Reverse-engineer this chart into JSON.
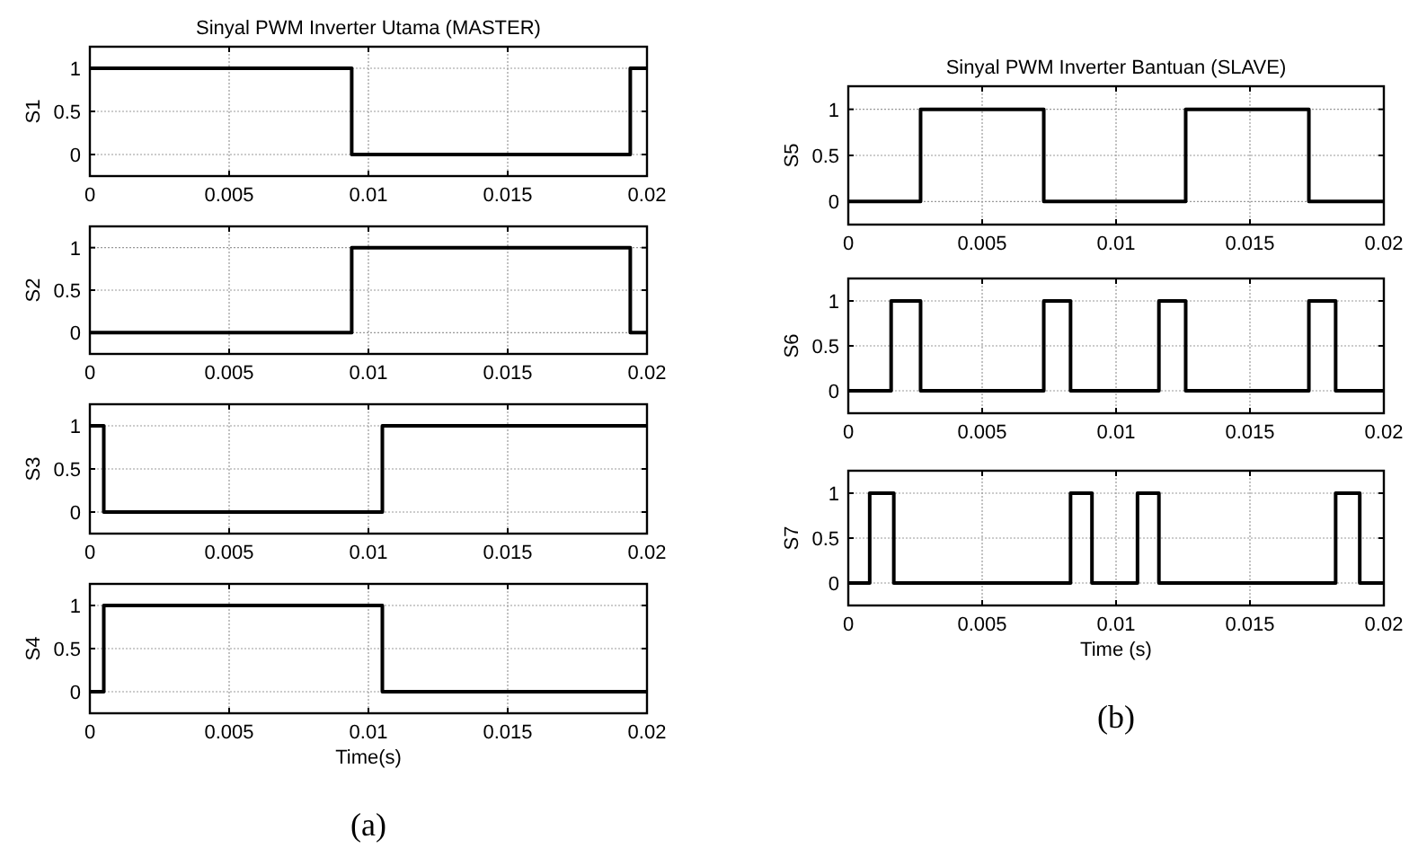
{
  "chart_data": [
    {
      "type": "step",
      "title": "Sinyal PWM Inverter Utama (MASTER)",
      "ylabel": "S1",
      "x": [
        0,
        0.0094,
        0.0194,
        0.02
      ],
      "values": [
        1,
        0,
        1,
        1
      ],
      "color": "#000000",
      "xlim": [
        0,
        0.02
      ],
      "xticks": [
        0,
        0.005,
        0.01,
        0.015,
        0.02
      ],
      "ylim": [
        -0.25,
        1.25
      ],
      "yticks": [
        0,
        0.5,
        1
      ],
      "grid": true
    },
    {
      "type": "step",
      "ylabel": "S2",
      "x": [
        0,
        0.0094,
        0.0194,
        0.02
      ],
      "values": [
        0,
        1,
        0,
        0
      ],
      "color": "#000000",
      "xlim": [
        0,
        0.02
      ],
      "xticks": [
        0,
        0.005,
        0.01,
        0.015,
        0.02
      ],
      "ylim": [
        -0.25,
        1.25
      ],
      "yticks": [
        0,
        0.5,
        1
      ],
      "grid": true
    },
    {
      "type": "step",
      "ylabel": "S3",
      "x": [
        0,
        0.0005,
        0.0105,
        0.02
      ],
      "values": [
        1,
        0,
        1,
        1
      ],
      "color": "#000000",
      "xlim": [
        0,
        0.02
      ],
      "xticks": [
        0,
        0.005,
        0.01,
        0.015,
        0.02
      ],
      "ylim": [
        -0.25,
        1.25
      ],
      "yticks": [
        0,
        0.5,
        1
      ],
      "grid": true
    },
    {
      "type": "step",
      "ylabel": "S4",
      "xlabel": "Time(s)",
      "annotations": [
        "(a)"
      ],
      "x": [
        0,
        0.0005,
        0.0105,
        0.02
      ],
      "values": [
        0,
        1,
        0,
        0
      ],
      "color": "#000000",
      "xlim": [
        0,
        0.02
      ],
      "xticks": [
        0,
        0.005,
        0.01,
        0.015,
        0.02
      ],
      "ylim": [
        -0.25,
        1.25
      ],
      "yticks": [
        0,
        0.5,
        1
      ],
      "grid": true
    },
    {
      "type": "step",
      "title": "Sinyal PWM Inverter Bantuan (SLAVE)",
      "ylabel": "S5",
      "x": [
        0,
        0.0027,
        0.0073,
        0.0126,
        0.0172,
        0.02
      ],
      "values": [
        0,
        1,
        0,
        1,
        0,
        0
      ],
      "color": "#000000",
      "xlim": [
        0,
        0.02
      ],
      "xticks": [
        0,
        0.005,
        0.01,
        0.015,
        0.02
      ],
      "ylim": [
        -0.25,
        1.25
      ],
      "yticks": [
        0,
        0.5,
        1
      ],
      "grid": true
    },
    {
      "type": "step",
      "ylabel": "S6",
      "x": [
        0,
        0.0016,
        0.0027,
        0.0073,
        0.0083,
        0.0116,
        0.0126,
        0.0172,
        0.0182,
        0.02
      ],
      "values": [
        0,
        1,
        0,
        1,
        0,
        1,
        0,
        1,
        0,
        0
      ],
      "color": "#000000",
      "xlim": [
        0,
        0.02
      ],
      "xticks": [
        0,
        0.005,
        0.01,
        0.015,
        0.02
      ],
      "ylim": [
        -0.25,
        1.25
      ],
      "yticks": [
        0,
        0.5,
        1
      ],
      "grid": true
    },
    {
      "type": "step",
      "ylabel": "S7",
      "xlabel": "Time (s)",
      "annotations": [
        "(b)"
      ],
      "x": [
        0,
        0.0008,
        0.0017,
        0.0083,
        0.0091,
        0.0108,
        0.0116,
        0.0182,
        0.0191,
        0.02
      ],
      "values": [
        0,
        1,
        0,
        1,
        0,
        1,
        0,
        1,
        0,
        0
      ],
      "color": "#000000",
      "xlim": [
        0,
        0.02
      ],
      "xticks": [
        0,
        0.005,
        0.01,
        0.015,
        0.02
      ],
      "ylim": [
        -0.25,
        1.25
      ],
      "yticks": [
        0,
        0.5,
        1
      ],
      "grid": true
    }
  ]
}
